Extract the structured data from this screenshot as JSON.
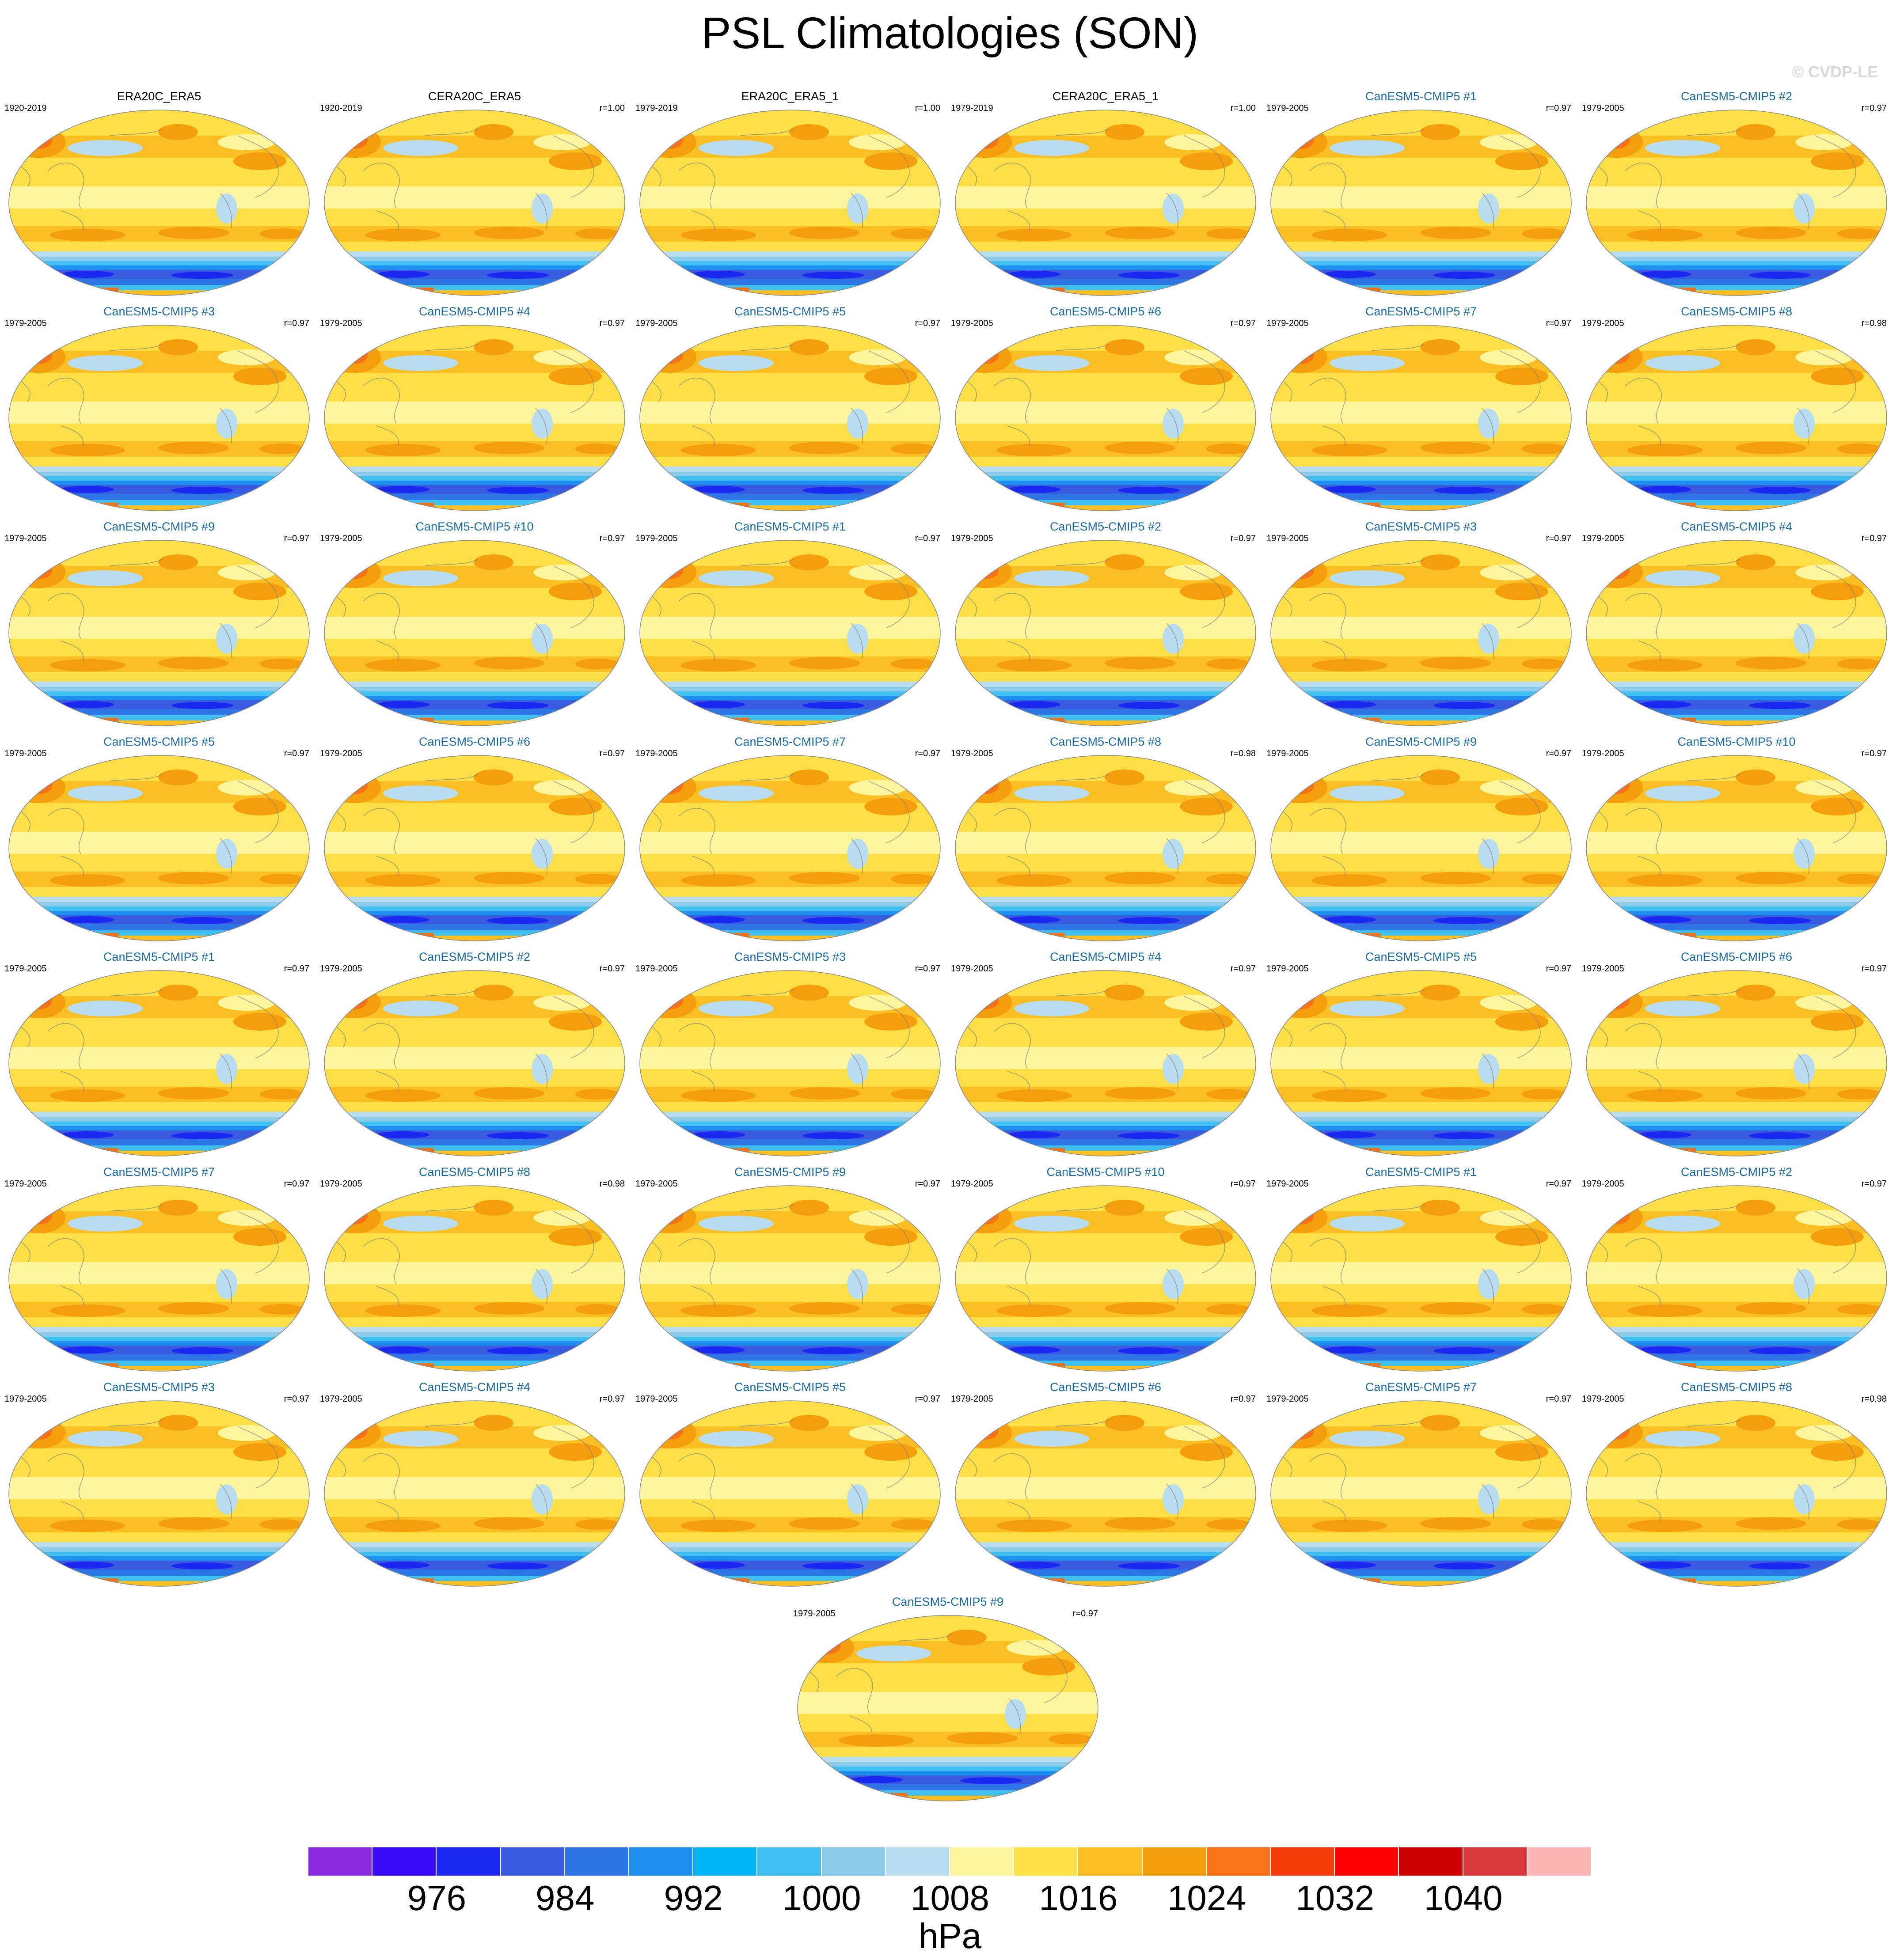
{
  "chart_data": {
    "type": "heatmap",
    "title": "PSL Climatologies (SON)",
    "credit": "© CVDP-LE",
    "units": "hPa",
    "colorbar": {
      "colors": [
        "#8a2be2",
        "#3a0af8",
        "#1a28f2",
        "#3a5ae0",
        "#2c76e8",
        "#2090f0",
        "#00b4f8",
        "#40c0f0",
        "#8ccbea",
        "#b8dcf0",
        "#fff59d",
        "#fde047",
        "#fbbf24",
        "#f59e0b",
        "#f97316",
        "#f53d0a",
        "#fe0000",
        "#cc0000",
        "#d73a3a",
        "#ffb3b3"
      ],
      "tick_labels": [
        "976",
        "984",
        "992",
        "1000",
        "1008",
        "1016",
        "1024",
        "1032",
        "1040"
      ]
    },
    "panels": [
      {
        "title": "ERA20C_ERA5",
        "period": "1920-2019",
        "r": "",
        "kind": "obs"
      },
      {
        "title": "CERA20C_ERA5",
        "period": "1920-2019",
        "r": "r=1.00",
        "kind": "obs"
      },
      {
        "title": "ERA20C_ERA5_1",
        "period": "1979-2019",
        "r": "r=1.00",
        "kind": "obs"
      },
      {
        "title": "CERA20C_ERA5_1",
        "period": "1979-2019",
        "r": "r=1.00",
        "kind": "obs"
      },
      {
        "title": "CanESM5-CMIP5 #1",
        "period": "1979-2005",
        "r": "r=0.97",
        "kind": "model"
      },
      {
        "title": "CanESM5-CMIP5 #2",
        "period": "1979-2005",
        "r": "r=0.97",
        "kind": "model"
      },
      {
        "title": "CanESM5-CMIP5 #3",
        "period": "1979-2005",
        "r": "r=0.97",
        "kind": "model"
      },
      {
        "title": "CanESM5-CMIP5 #4",
        "period": "1979-2005",
        "r": "r=0.97",
        "kind": "model"
      },
      {
        "title": "CanESM5-CMIP5 #5",
        "period": "1979-2005",
        "r": "r=0.97",
        "kind": "model"
      },
      {
        "title": "CanESM5-CMIP5 #6",
        "period": "1979-2005",
        "r": "r=0.97",
        "kind": "model"
      },
      {
        "title": "CanESM5-CMIP5 #7",
        "period": "1979-2005",
        "r": "r=0.97",
        "kind": "model"
      },
      {
        "title": "CanESM5-CMIP5 #8",
        "period": "1979-2005",
        "r": "r=0.98",
        "kind": "model"
      },
      {
        "title": "CanESM5-CMIP5 #9",
        "period": "1979-2005",
        "r": "r=0.97",
        "kind": "model"
      },
      {
        "title": "CanESM5-CMIP5 #10",
        "period": "1979-2005",
        "r": "r=0.97",
        "kind": "model"
      },
      {
        "title": "CanESM5-CMIP5 #1",
        "period": "1979-2005",
        "r": "r=0.97",
        "kind": "model"
      },
      {
        "title": "CanESM5-CMIP5 #2",
        "period": "1979-2005",
        "r": "r=0.97",
        "kind": "model"
      },
      {
        "title": "CanESM5-CMIP5 #3",
        "period": "1979-2005",
        "r": "r=0.97",
        "kind": "model"
      },
      {
        "title": "CanESM5-CMIP5 #4",
        "period": "1979-2005",
        "r": "r=0.97",
        "kind": "model"
      },
      {
        "title": "CanESM5-CMIP5 #5",
        "period": "1979-2005",
        "r": "r=0.97",
        "kind": "model"
      },
      {
        "title": "CanESM5-CMIP5 #6",
        "period": "1979-2005",
        "r": "r=0.97",
        "kind": "model"
      },
      {
        "title": "CanESM5-CMIP5 #7",
        "period": "1979-2005",
        "r": "r=0.97",
        "kind": "model"
      },
      {
        "title": "CanESM5-CMIP5 #8",
        "period": "1979-2005",
        "r": "r=0.98",
        "kind": "model"
      },
      {
        "title": "CanESM5-CMIP5 #9",
        "period": "1979-2005",
        "r": "r=0.97",
        "kind": "model"
      },
      {
        "title": "CanESM5-CMIP5 #10",
        "period": "1979-2005",
        "r": "r=0.97",
        "kind": "model"
      },
      {
        "title": "CanESM5-CMIP5 #1",
        "period": "1979-2005",
        "r": "r=0.97",
        "kind": "model"
      },
      {
        "title": "CanESM5-CMIP5 #2",
        "period": "1979-2005",
        "r": "r=0.97",
        "kind": "model"
      },
      {
        "title": "CanESM5-CMIP5 #3",
        "period": "1979-2005",
        "r": "r=0.97",
        "kind": "model"
      },
      {
        "title": "CanESM5-CMIP5 #4",
        "period": "1979-2005",
        "r": "r=0.97",
        "kind": "model"
      },
      {
        "title": "CanESM5-CMIP5 #5",
        "period": "1979-2005",
        "r": "r=0.97",
        "kind": "model"
      },
      {
        "title": "CanESM5-CMIP5 #6",
        "period": "1979-2005",
        "r": "r=0.97",
        "kind": "model"
      },
      {
        "title": "CanESM5-CMIP5 #7",
        "period": "1979-2005",
        "r": "r=0.97",
        "kind": "model"
      },
      {
        "title": "CanESM5-CMIP5 #8",
        "period": "1979-2005",
        "r": "r=0.98",
        "kind": "model"
      },
      {
        "title": "CanESM5-CMIP5 #9",
        "period": "1979-2005",
        "r": "r=0.97",
        "kind": "model"
      },
      {
        "title": "CanESM5-CMIP5 #10",
        "period": "1979-2005",
        "r": "r=0.97",
        "kind": "model"
      },
      {
        "title": "CanESM5-CMIP5 #1",
        "period": "1979-2005",
        "r": "r=0.97",
        "kind": "model"
      },
      {
        "title": "CanESM5-CMIP5 #2",
        "period": "1979-2005",
        "r": "r=0.97",
        "kind": "model"
      },
      {
        "title": "CanESM5-CMIP5 #3",
        "period": "1979-2005",
        "r": "r=0.97",
        "kind": "model"
      },
      {
        "title": "CanESM5-CMIP5 #4",
        "period": "1979-2005",
        "r": "r=0.97",
        "kind": "model"
      },
      {
        "title": "CanESM5-CMIP5 #5",
        "period": "1979-2005",
        "r": "r=0.97",
        "kind": "model"
      },
      {
        "title": "CanESM5-CMIP5 #6",
        "period": "1979-2005",
        "r": "r=0.97",
        "kind": "model"
      },
      {
        "title": "CanESM5-CMIP5 #7",
        "period": "1979-2005",
        "r": "r=0.97",
        "kind": "model"
      },
      {
        "title": "CanESM5-CMIP5 #8",
        "period": "1979-2005",
        "r": "r=0.98",
        "kind": "model"
      },
      {
        "title": "CanESM5-CMIP5 #9",
        "period": "1979-2005",
        "r": "r=0.97",
        "kind": "model"
      }
    ]
  }
}
